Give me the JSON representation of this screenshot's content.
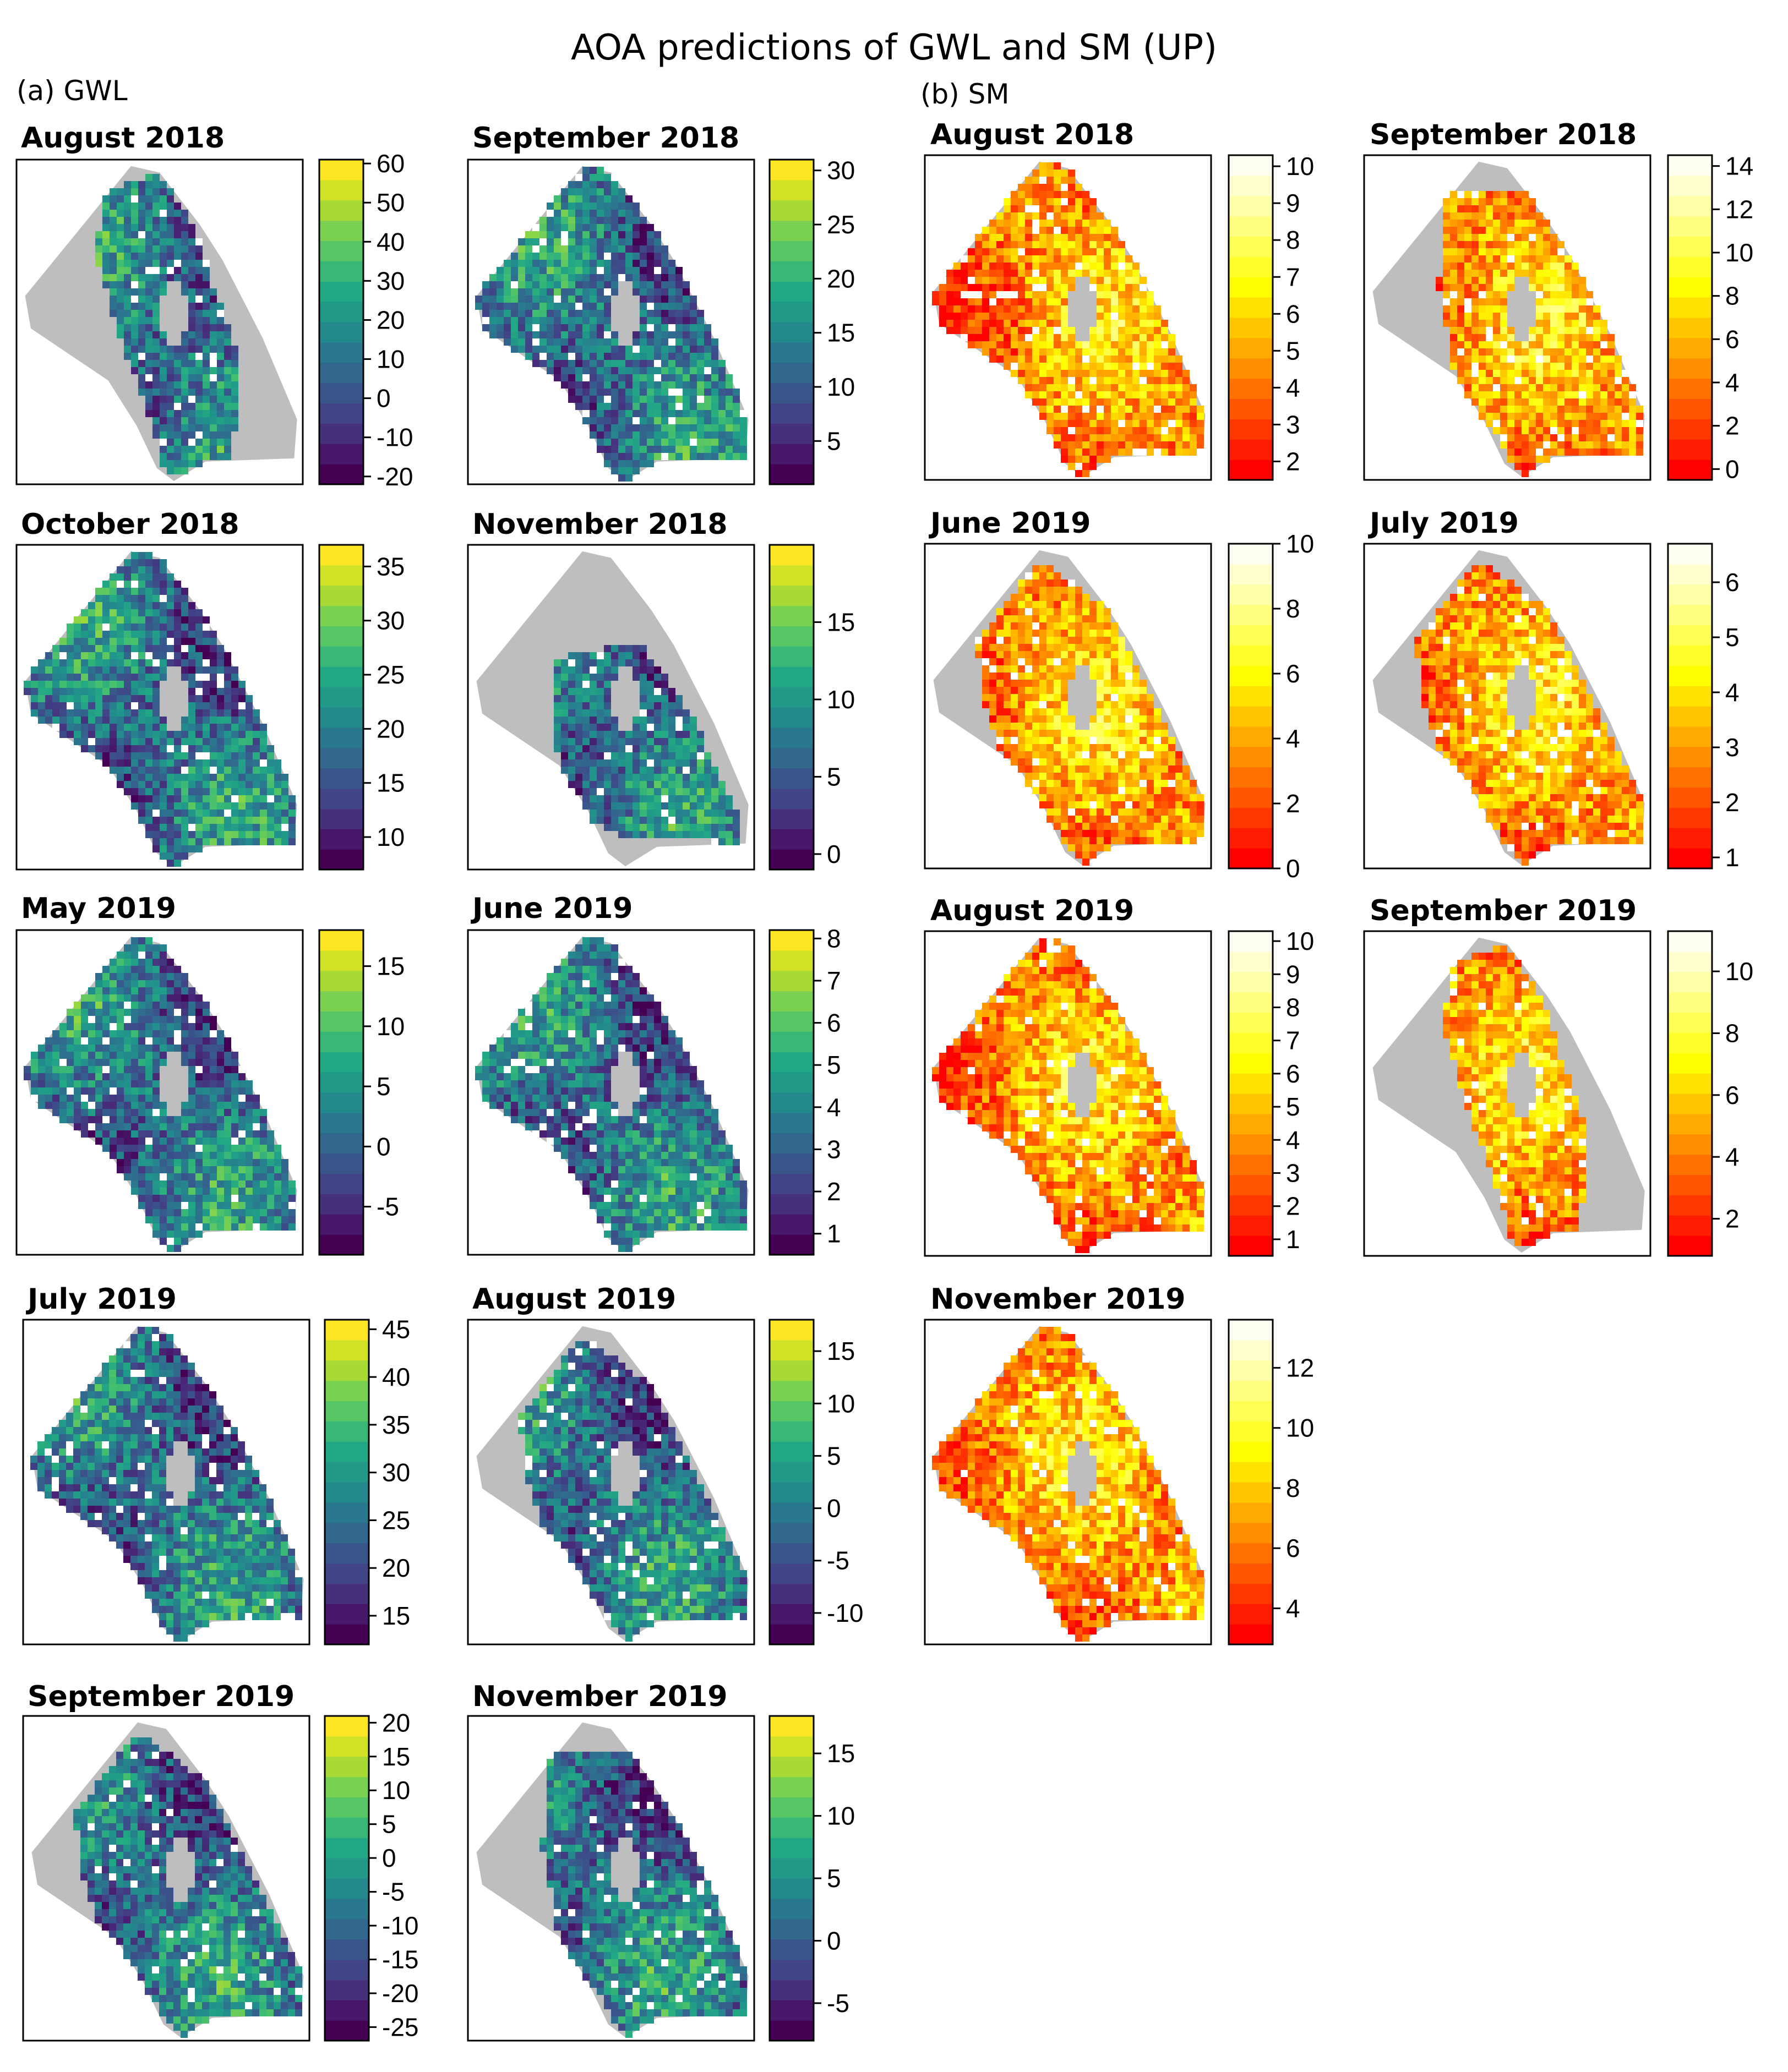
{
  "title": "AOA predictions of GWL and SM (UP)",
  "sections": [
    {
      "label": "(a) GWL",
      "palette": "viridis",
      "panels": [
        {
          "title": "August 2018",
          "ticks": [
            "-20",
            "-10",
            "0",
            "10",
            "20",
            "30",
            "40",
            "50",
            "60"
          ],
          "range": [
            -22,
            61
          ],
          "aoa_mask": "partial-central"
        },
        {
          "title": "September 2018",
          "ticks": [
            "5",
            "10",
            "15",
            "20",
            "25",
            "30"
          ],
          "range": [
            1,
            31
          ],
          "aoa_mask": "full"
        },
        {
          "title": "October 2018",
          "ticks": [
            "10",
            "15",
            "20",
            "25",
            "30",
            "35"
          ],
          "range": [
            7,
            37
          ],
          "aoa_mask": "full"
        },
        {
          "title": "November 2018",
          "ticks": [
            "0",
            "5",
            "10",
            "15"
          ],
          "range": [
            -1,
            20
          ],
          "aoa_mask": "partial-lower"
        },
        {
          "title": "May 2019",
          "ticks": [
            "-5",
            "0",
            "5",
            "10",
            "15"
          ],
          "range": [
            -9,
            18
          ],
          "aoa_mask": "full"
        },
        {
          "title": "June 2019",
          "ticks": [
            "1",
            "2",
            "3",
            "4",
            "5",
            "6",
            "7",
            "8"
          ],
          "range": [
            0.5,
            8.2
          ],
          "aoa_mask": "full"
        },
        {
          "title": "July 2019",
          "ticks": [
            "15",
            "20",
            "25",
            "30",
            "35",
            "40",
            "45"
          ],
          "range": [
            12,
            46
          ],
          "aoa_mask": "full"
        },
        {
          "title": "August 2019",
          "ticks": [
            "-10",
            "-5",
            "0",
            "5",
            "10",
            "15"
          ],
          "range": [
            -13,
            18
          ],
          "aoa_mask": "mostly"
        },
        {
          "title": "September 2019",
          "ticks": [
            "-25",
            "-20",
            "-15",
            "-10",
            "-5",
            "0",
            "5",
            "10",
            "15",
            "20"
          ],
          "range": [
            -27,
            21
          ],
          "aoa_mask": "mostly"
        },
        {
          "title": "November 2019",
          "ticks": [
            "-5",
            "0",
            "5",
            "10",
            "15"
          ],
          "range": [
            -8,
            18
          ],
          "aoa_mask": "partial-right"
        }
      ]
    },
    {
      "label": "(b) SM",
      "palette": "heat",
      "panels": [
        {
          "title": "August 2018",
          "ticks": [
            "2",
            "3",
            "4",
            "5",
            "6",
            "7",
            "8",
            "9",
            "10"
          ],
          "range": [
            1.5,
            10.3
          ],
          "aoa_mask": "full"
        },
        {
          "title": "September 2018",
          "ticks": [
            "0",
            "2",
            "4",
            "6",
            "8",
            "10",
            "12",
            "14"
          ],
          "range": [
            -0.5,
            14.5
          ],
          "aoa_mask": "partial-right"
        },
        {
          "title": "June 2019",
          "ticks": [
            "0",
            "2",
            "4",
            "6",
            "8",
            "10"
          ],
          "range": [
            0,
            10
          ],
          "aoa_mask": "mostly"
        },
        {
          "title": "July 2019",
          "ticks": [
            "1",
            "2",
            "3",
            "4",
            "5",
            "6"
          ],
          "range": [
            0.8,
            6.7
          ],
          "aoa_mask": "mostly"
        },
        {
          "title": "August 2019",
          "ticks": [
            "1",
            "2",
            "3",
            "4",
            "5",
            "6",
            "7",
            "8",
            "9",
            "10"
          ],
          "range": [
            0.5,
            10.3
          ],
          "aoa_mask": "full"
        },
        {
          "title": "September 2019",
          "ticks": [
            "2",
            "4",
            "6",
            "8",
            "10"
          ],
          "range": [
            0.8,
            11.3
          ],
          "aoa_mask": "partial-central"
        },
        {
          "title": "November 2019",
          "ticks": [
            "4",
            "6",
            "8",
            "10",
            "12"
          ],
          "range": [
            2.8,
            13.6
          ],
          "aoa_mask": "full"
        }
      ]
    }
  ],
  "colors": {
    "outside_aoa": "#bebebe",
    "frame": "#000000",
    "viridis": [
      "#440154",
      "#482475",
      "#414487",
      "#355f8d",
      "#2a788e",
      "#21918c",
      "#22a884",
      "#44bf70",
      "#7ad151",
      "#bddf26",
      "#fde725"
    ],
    "heat": [
      "#ff0000",
      "#ff2a00",
      "#ff5500",
      "#ff8000",
      "#ffaa00",
      "#ffd400",
      "#ffff00",
      "#ffff40",
      "#ffff80",
      "#ffffbf",
      "#fffff2"
    ]
  }
}
